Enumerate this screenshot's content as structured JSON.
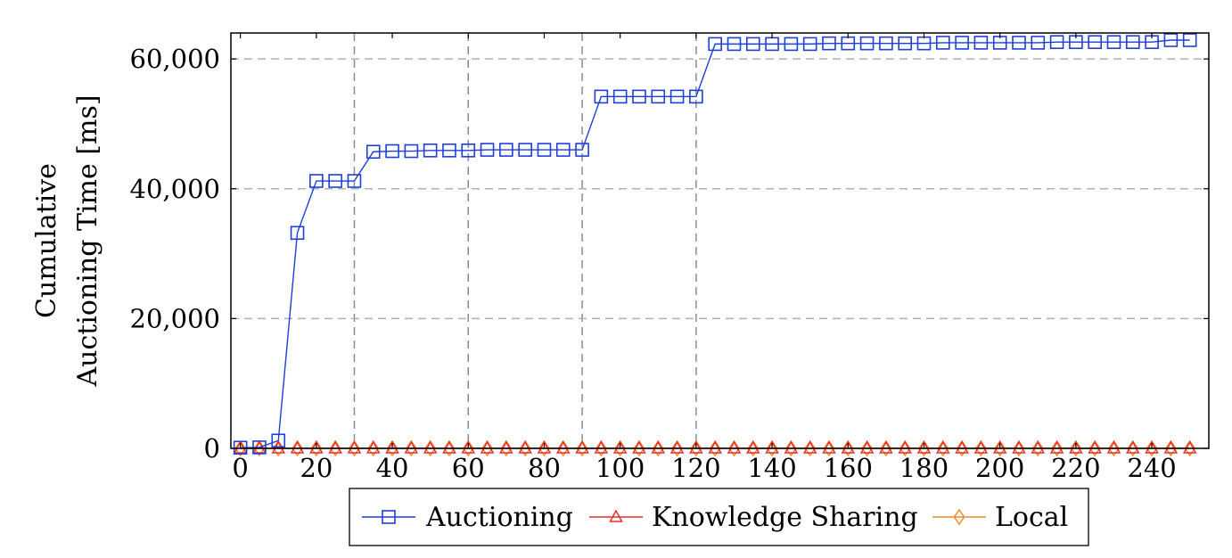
{
  "chart_data": {
    "type": "line",
    "title": "",
    "xlabel": "",
    "ylabel_lines": [
      "Cumulative",
      "Auctioning Time [ms]"
    ],
    "xlim": [
      -2.5,
      255
    ],
    "ylim": [
      0,
      64000
    ],
    "xticks": [
      0,
      20,
      40,
      60,
      80,
      100,
      120,
      140,
      160,
      180,
      200,
      220,
      240
    ],
    "yticks": [
      0,
      20000,
      40000,
      60000
    ],
    "ytick_labels": [
      "0",
      "20,000",
      "40,000",
      "60,000"
    ],
    "grid": {
      "x_dashed_at": [
        30,
        60,
        90,
        120
      ],
      "y_dashed_at": [
        20000,
        40000,
        60000
      ]
    },
    "legend_position": "bottom-center",
    "x": [
      0,
      5,
      10,
      15,
      20,
      25,
      30,
      35,
      40,
      45,
      50,
      55,
      60,
      65,
      70,
      75,
      80,
      85,
      90,
      95,
      100,
      105,
      110,
      115,
      120,
      125,
      130,
      135,
      140,
      145,
      150,
      155,
      160,
      165,
      170,
      175,
      180,
      185,
      190,
      195,
      200,
      205,
      210,
      215,
      220,
      225,
      230,
      235,
      240,
      245,
      250
    ],
    "series": [
      {
        "name": "Auctioning",
        "color": "#1f3fd8",
        "marker": "square",
        "values": [
          100,
          150,
          1200,
          33200,
          41200,
          41200,
          41200,
          45700,
          45800,
          45800,
          45900,
          45900,
          45900,
          46000,
          46000,
          46000,
          46000,
          46000,
          46000,
          54200,
          54200,
          54200,
          54200,
          54200,
          54200,
          62300,
          62300,
          62300,
          62300,
          62300,
          62300,
          62400,
          62400,
          62400,
          62400,
          62400,
          62400,
          62500,
          62500,
          62500,
          62500,
          62500,
          62500,
          62600,
          62600,
          62600,
          62600,
          62600,
          62600,
          62900,
          62900
        ]
      },
      {
        "name": "Knowledge Sharing",
        "color": "#e8302a",
        "marker": "triangle",
        "values": [
          5,
          5,
          5,
          5,
          5,
          5,
          5,
          5,
          5,
          5,
          5,
          5,
          5,
          5,
          5,
          5,
          5,
          5,
          5,
          5,
          5,
          5,
          5,
          5,
          5,
          5,
          5,
          5,
          5,
          5,
          5,
          5,
          5,
          5,
          5,
          5,
          5,
          5,
          5,
          5,
          5,
          5,
          5,
          5,
          5,
          5,
          5,
          5,
          5,
          5,
          5
        ]
      },
      {
        "name": "Local",
        "color": "#f28a2e",
        "marker": "diamond",
        "values": [
          10,
          10,
          10,
          10,
          10,
          10,
          10,
          10,
          10,
          10,
          10,
          10,
          10,
          10,
          10,
          10,
          10,
          10,
          10,
          10,
          10,
          10,
          10,
          10,
          10,
          10,
          10,
          10,
          10,
          10,
          10,
          10,
          10,
          10,
          10,
          10,
          10,
          10,
          10,
          10,
          10,
          10,
          10,
          10,
          10,
          10,
          10,
          10,
          10,
          10,
          10
        ]
      }
    ]
  }
}
